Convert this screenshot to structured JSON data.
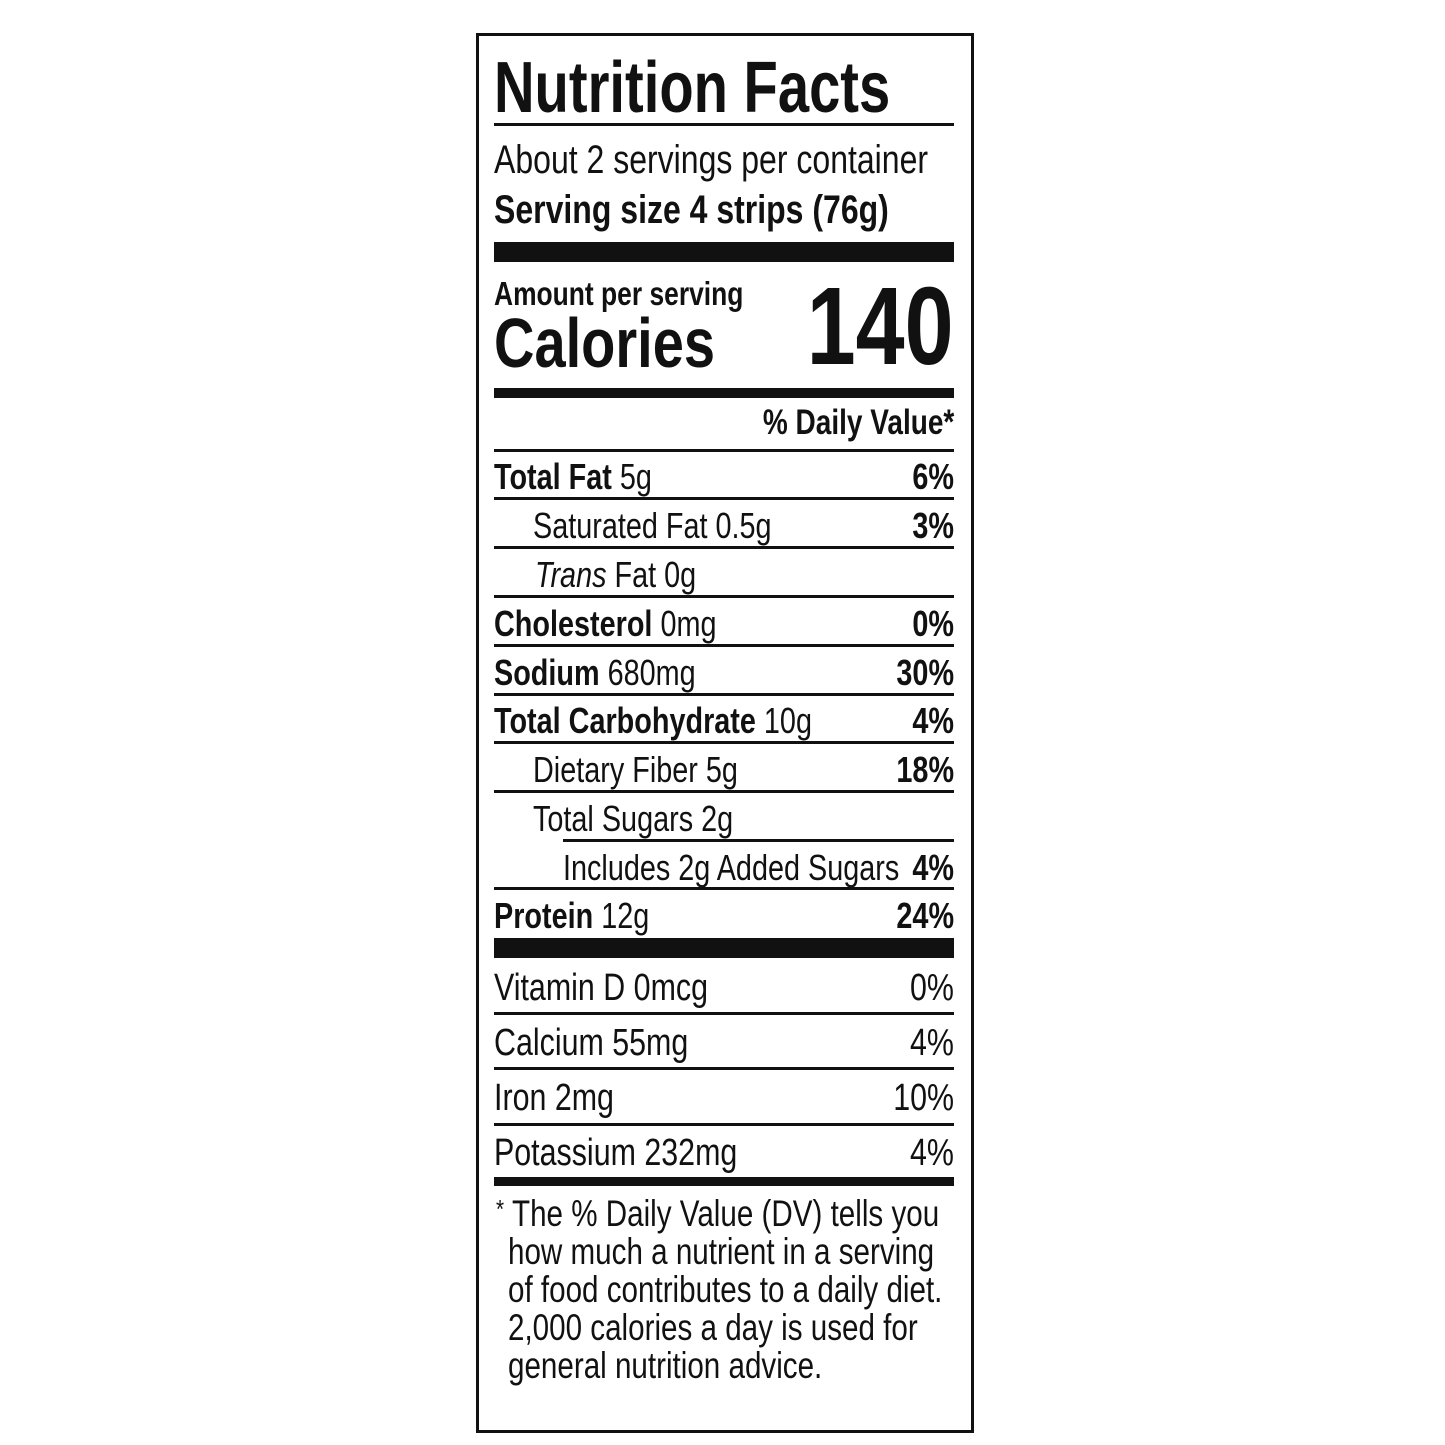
{
  "title": "Nutrition Facts",
  "servings_per_container": "About 2 servings per container",
  "serving_size": "Serving size 4 strips (76g)",
  "amount_per_serving": "Amount per serving",
  "calories_label": "Calories",
  "calories_value": "140",
  "daily_value_header": "% Daily Value*",
  "nutrients": [
    {
      "name": "Total Fat",
      "amount": "5g",
      "dv": "6%"
    },
    {
      "name": "Saturated Fat",
      "amount": "0.5g",
      "dv": "3%"
    },
    {
      "name": "Trans",
      "name_suffix": "Fat",
      "amount": "0g",
      "dv": ""
    },
    {
      "name": "Cholesterol",
      "amount": "0mg",
      "dv": "0%"
    },
    {
      "name": "Sodium",
      "amount": "680mg",
      "dv": "30%"
    },
    {
      "name": "Total Carbohydrate",
      "amount": "10g",
      "dv": "4%"
    },
    {
      "name": "Dietary Fiber",
      "amount": "5g",
      "dv": "18%"
    },
    {
      "name": "Total Sugars",
      "amount": "2g",
      "dv": ""
    },
    {
      "name": "Includes 2g Added Sugars",
      "amount": "",
      "dv": "4%"
    },
    {
      "name": "Protein",
      "amount": "12g",
      "dv": "24%"
    }
  ],
  "vitamins": [
    {
      "label": "Vitamin D 0mcg",
      "dv": "0%"
    },
    {
      "label": "Calcium 55mg",
      "dv": "4%"
    },
    {
      "label": "Iron 2mg",
      "dv": "10%"
    },
    {
      "label": "Potassium 232mg",
      "dv": "4%"
    }
  ],
  "footnote_lines": [
    "The % Daily Value (DV) tells you",
    "how much a nutrient in a serving",
    "of food contributes to a daily diet.",
    "2,000 calories a day is used for",
    "general nutrition advice."
  ],
  "footnote_marker": "*"
}
